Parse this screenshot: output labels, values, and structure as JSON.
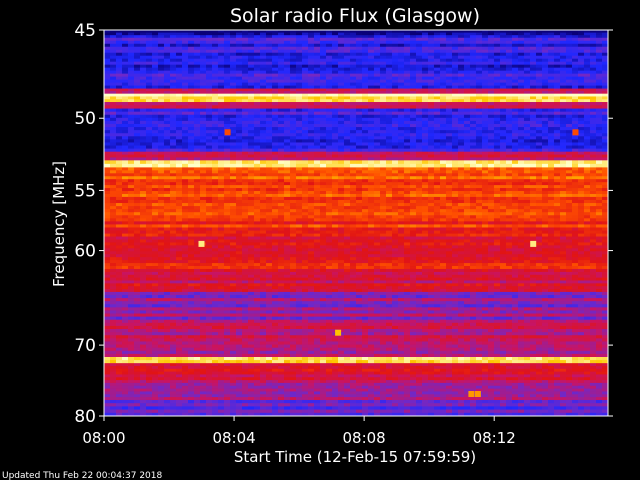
{
  "colors": {
    "background": "#000000",
    "text": "#ffffff",
    "colormap": [
      "#0a0078",
      "#2028ff",
      "#7028c8",
      "#c81464",
      "#e11414",
      "#ff5000",
      "#ffc800",
      "#ffffc8"
    ]
  },
  "chart_data": {
    "type": "heatmap",
    "title": "Solar radio Flux (Glasgow)",
    "xlabel": "Start Time (12-Feb-15 07:59:59)",
    "ylabel": "Frequency [MHz]",
    "footer": "Updated Thu Feb 22 00:04:37 2018",
    "x_range_minutes": [
      0,
      15.5
    ],
    "x_ticks": [
      {
        "minute": 0,
        "label": "08:00"
      },
      {
        "minute": 4,
        "label": "08:04"
      },
      {
        "minute": 8,
        "label": "08:08"
      },
      {
        "minute": 12,
        "label": "08:12"
      }
    ],
    "ylim": [
      45,
      80
    ],
    "y_scale": "reciprocal",
    "y_ticks": [
      45,
      50,
      55,
      60,
      70,
      80
    ],
    "intensity_scale": "normalized 0-1",
    "frequency_band_intensity": [
      {
        "f_from": 44.8,
        "f_to": 45.4,
        "value": 0.05
      },
      {
        "f_from": 45.4,
        "f_to": 48.2,
        "value": 0.16
      },
      {
        "f_from": 48.2,
        "f_to": 48.5,
        "value": 0.45
      },
      {
        "f_from": 48.5,
        "f_to": 49.0,
        "value": 0.97
      },
      {
        "f_from": 49.0,
        "f_to": 49.4,
        "value": 0.45
      },
      {
        "f_from": 49.4,
        "f_to": 52.2,
        "value": 0.18
      },
      {
        "f_from": 52.2,
        "f_to": 52.8,
        "value": 0.45
      },
      {
        "f_from": 52.8,
        "f_to": 53.3,
        "value": 0.95
      },
      {
        "f_from": 53.3,
        "f_to": 55.5,
        "value": 0.7
      },
      {
        "f_from": 55.5,
        "f_to": 58.5,
        "value": 0.64
      },
      {
        "f_from": 58.5,
        "f_to": 62.0,
        "value": 0.57
      },
      {
        "f_from": 62.0,
        "f_to": 64.0,
        "value": 0.5
      },
      {
        "f_from": 64.0,
        "f_to": 67.0,
        "value": 0.34
      },
      {
        "f_from": 67.0,
        "f_to": 71.5,
        "value": 0.42
      },
      {
        "f_from": 71.5,
        "f_to": 72.3,
        "value": 0.92
      },
      {
        "f_from": 72.3,
        "f_to": 75.0,
        "value": 0.5
      },
      {
        "f_from": 75.0,
        "f_to": 77.5,
        "value": 0.36
      },
      {
        "f_from": 77.5,
        "f_to": 80.0,
        "value": 0.26
      }
    ],
    "hot_spots": [
      {
        "minute": 3.0,
        "freq": 59.4,
        "value": 0.95
      },
      {
        "minute": 13.2,
        "freq": 59.4,
        "value": 0.95
      },
      {
        "minute": 3.8,
        "freq": 50.9,
        "value": 0.7
      },
      {
        "minute": 14.5,
        "freq": 50.9,
        "value": 0.7
      },
      {
        "minute": 11.3,
        "freq": 76.6,
        "value": 0.8
      },
      {
        "minute": 11.5,
        "freq": 76.6,
        "value": 0.8
      },
      {
        "minute": 7.2,
        "freq": 68.5,
        "value": 0.85
      }
    ]
  }
}
